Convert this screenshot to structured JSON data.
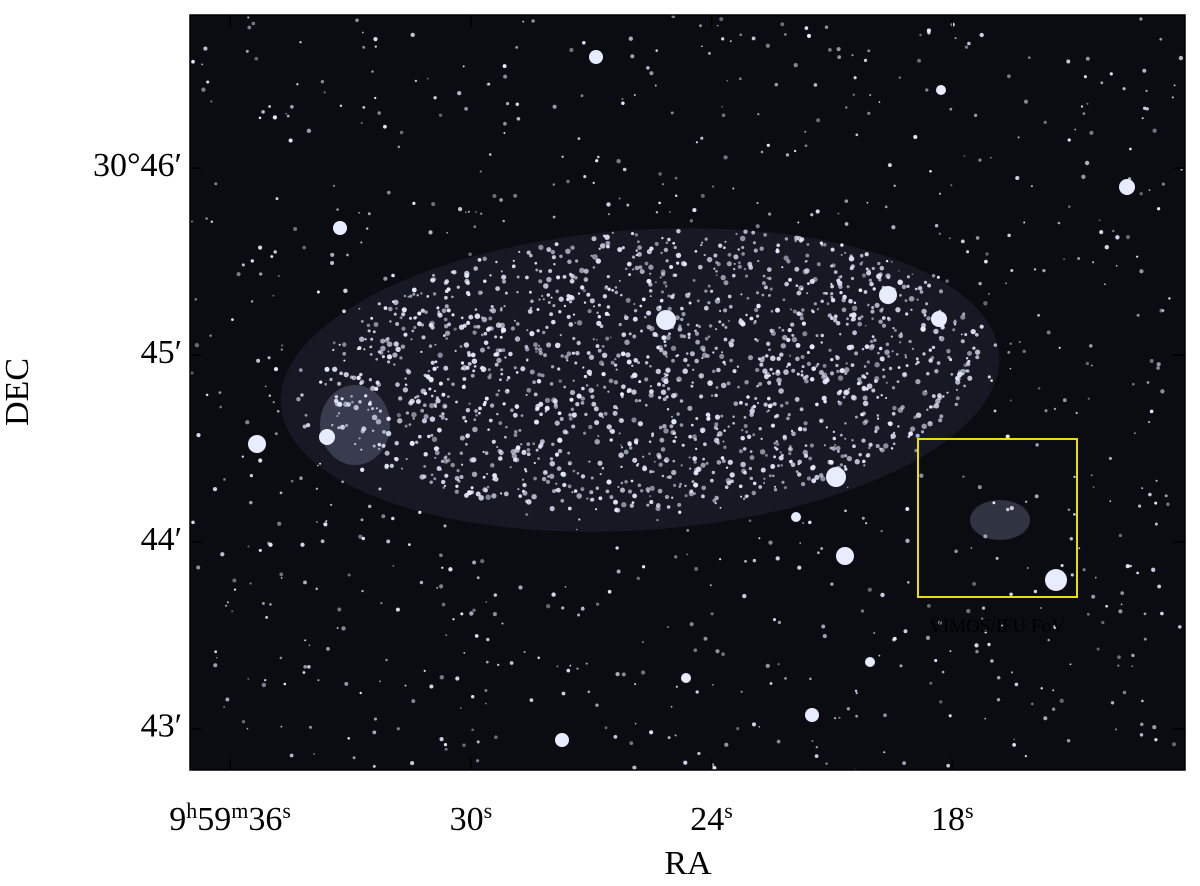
{
  "chart_data": {
    "type": "image",
    "x_label": "RA",
    "y_label": "DEC",
    "xlim": [
      37.0,
      12.2
    ],
    "xticks": [
      {
        "value": 36,
        "label": "9h59m36s"
      },
      {
        "value": 30,
        "label": "30s"
      },
      {
        "value": 24,
        "label": "24s"
      },
      {
        "value": 18,
        "label": "18s"
      }
    ],
    "ylim": [
      42.78,
      46.82
    ],
    "yticks": [
      {
        "value": 43,
        "label": "43′"
      },
      {
        "value": 44,
        "label": "44′"
      },
      {
        "value": 45,
        "label": "45′"
      },
      {
        "value": 46,
        "label": "30°46′"
      }
    ],
    "annotation": "VIMOS/IFU FoV",
    "annotation_color": "#e8e000"
  }
}
